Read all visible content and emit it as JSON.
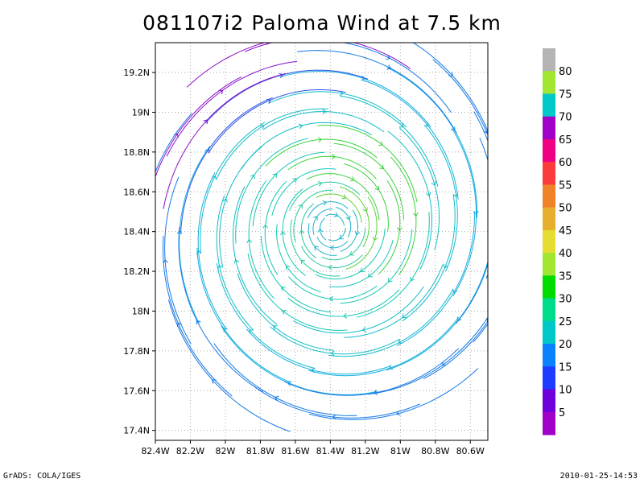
{
  "chart_data": {
    "type": "streamline",
    "title": "081107i2 Paloma Wind at 7.5 km",
    "x_ticks": [
      "82.4W",
      "82.2W",
      "82W",
      "81.8W",
      "81.6W",
      "81.4W",
      "81.2W",
      "81W",
      "80.8W",
      "80.6W"
    ],
    "y_ticks": [
      "19.2N",
      "19N",
      "18.8N",
      "18.6N",
      "18.4N",
      "18.2N",
      "18N",
      "17.8N",
      "17.6N",
      "17.4N"
    ],
    "xlim_deg_west": [
      82.4,
      80.5
    ],
    "ylim_deg_north": [
      17.35,
      19.35
    ],
    "grid": "dotted",
    "vortex_center": {
      "lon": "81.35W",
      "lat": "18.4N"
    },
    "approx_max_wind_band": "35-40",
    "colorbar": {
      "labels": [
        "5",
        "10",
        "15",
        "20",
        "25",
        "30",
        "35",
        "40",
        "45",
        "50",
        "55",
        "60",
        "65",
        "70",
        "75",
        "80"
      ],
      "colors": [
        "#a000c8",
        "#6e00dc",
        "#1e3cff",
        "#0a82ff",
        "#00c8c8",
        "#00dc8c",
        "#00dc00",
        "#a0e632",
        "#e6dc32",
        "#e6af2d",
        "#f08228",
        "#fa3c3c",
        "#f00082",
        "#a000c8",
        "#00c8c8",
        "#a0e632",
        "#b4b4b4"
      ]
    }
  },
  "footer": {
    "left": "GrADS: COLA/IGES",
    "right": "2010-01-25-14:53"
  }
}
